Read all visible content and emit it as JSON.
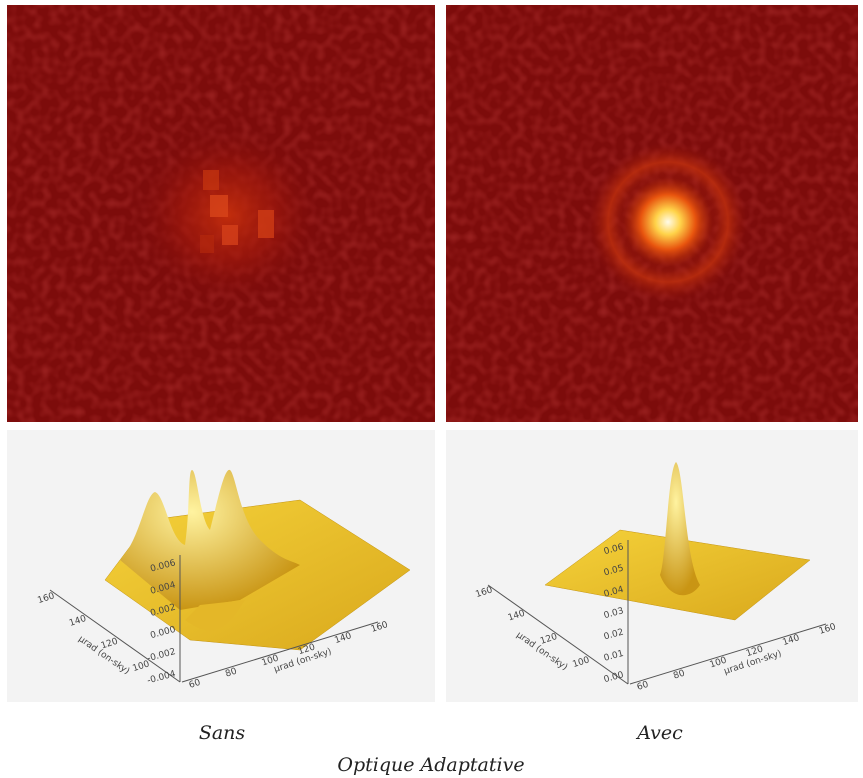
{
  "captions": {
    "left": "Sans",
    "right": "Avec",
    "title": "Optique Adaptative"
  },
  "plots": [
    {
      "z_ticks": [
        "0.006",
        "0.004",
        "0.002",
        "0.000",
        "-0.002",
        "-0.004"
      ],
      "x_ticks": [
        "60",
        "80",
        "100",
        "120",
        "140",
        "160"
      ],
      "y_ticks": [
        "160",
        "140",
        "120",
        "100"
      ],
      "x_label": "μrad (on-sky)",
      "y_label": "μrad (on-sky)"
    },
    {
      "z_ticks": [
        "0.06",
        "0.05",
        "0.04",
        "0.03",
        "0.02",
        "0.01",
        "0.00"
      ],
      "x_ticks": [
        "60",
        "80",
        "100",
        "120",
        "140",
        "160"
      ],
      "y_ticks": [
        "160",
        "140",
        "120",
        "100"
      ],
      "x_label": "μrad (on-sky)",
      "y_label": "μrad (on-sky)"
    }
  ]
}
